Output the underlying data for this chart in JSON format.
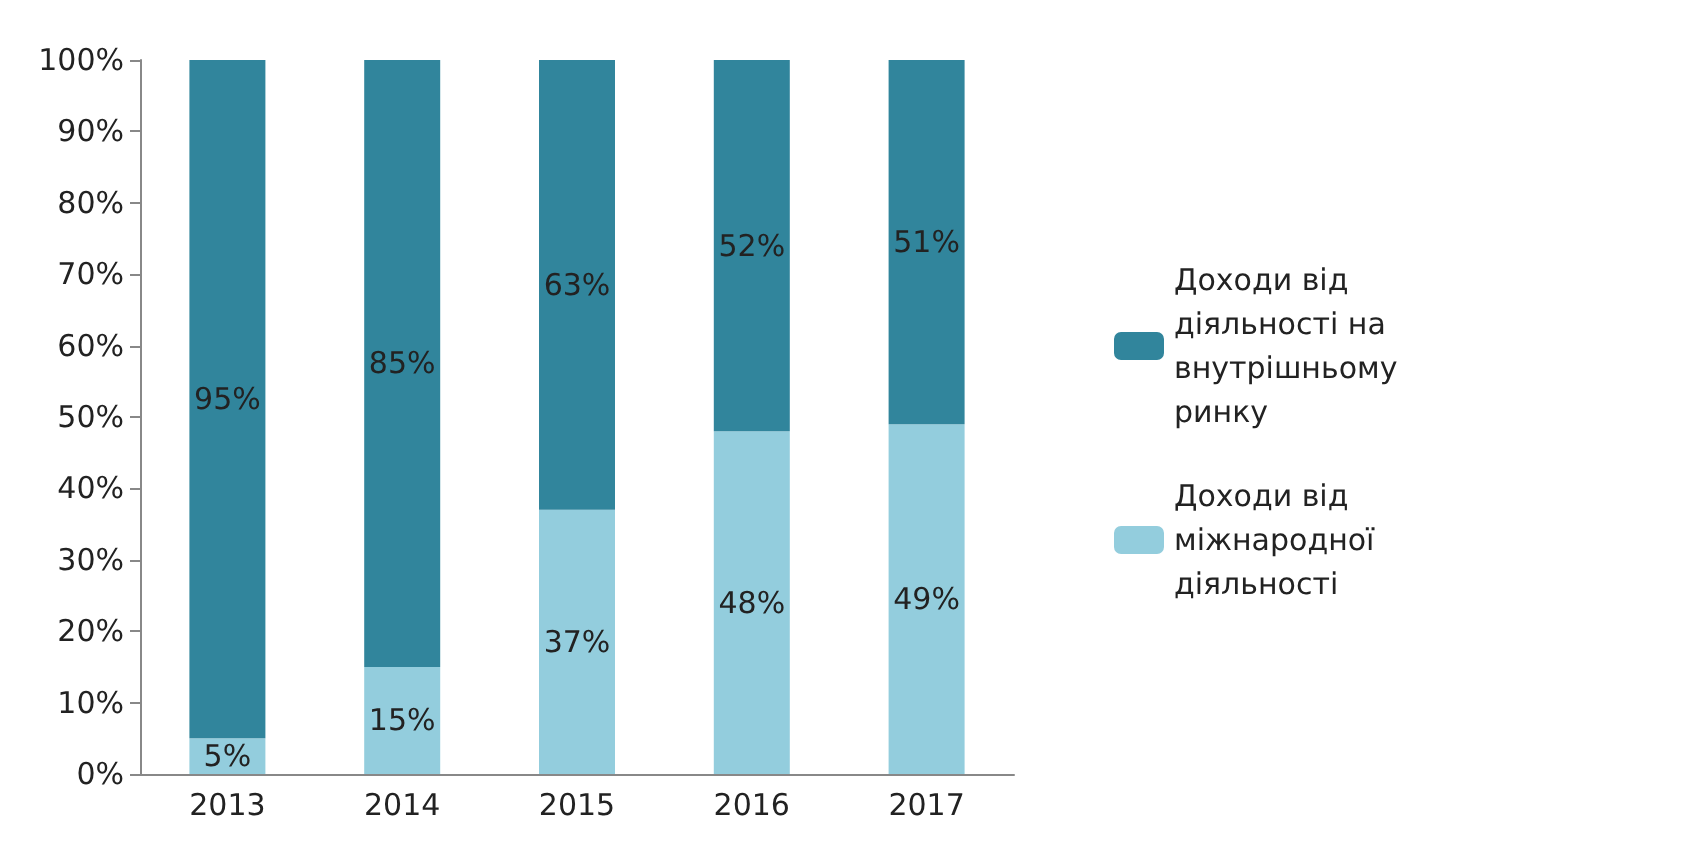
{
  "chart_data": {
    "type": "bar",
    "stacked": true,
    "categories": [
      "2013",
      "2014",
      "2015",
      "2016",
      "2017"
    ],
    "series": [
      {
        "name": "Доходи від міжнародної діяльності",
        "color": "#93cddd",
        "values": [
          5,
          15,
          37,
          48,
          49
        ],
        "value_labels": [
          "5%",
          "15%",
          "37%",
          "48%",
          "49%"
        ]
      },
      {
        "name": "Доходи від діяльності на внутрішньому ринку",
        "color": "#31859c",
        "values": [
          95,
          85,
          63,
          52,
          51
        ],
        "value_labels": [
          "95%",
          "85%",
          "63%",
          "52%",
          "51%"
        ]
      }
    ],
    "ylim": [
      0,
      100
    ],
    "yticks": [
      {
        "value": 0,
        "label": "0%"
      },
      {
        "value": 10,
        "label": "10%"
      },
      {
        "value": 20,
        "label": "20%"
      },
      {
        "value": 30,
        "label": "30%"
      },
      {
        "value": 40,
        "label": "40%"
      },
      {
        "value": 50,
        "label": "50%"
      },
      {
        "value": 60,
        "label": "60%"
      },
      {
        "value": 70,
        "label": "70%"
      },
      {
        "value": 80,
        "label": "80%"
      },
      {
        "value": 90,
        "label": "90%"
      },
      {
        "value": 100,
        "label": "100%"
      }
    ],
    "legend": "right"
  }
}
